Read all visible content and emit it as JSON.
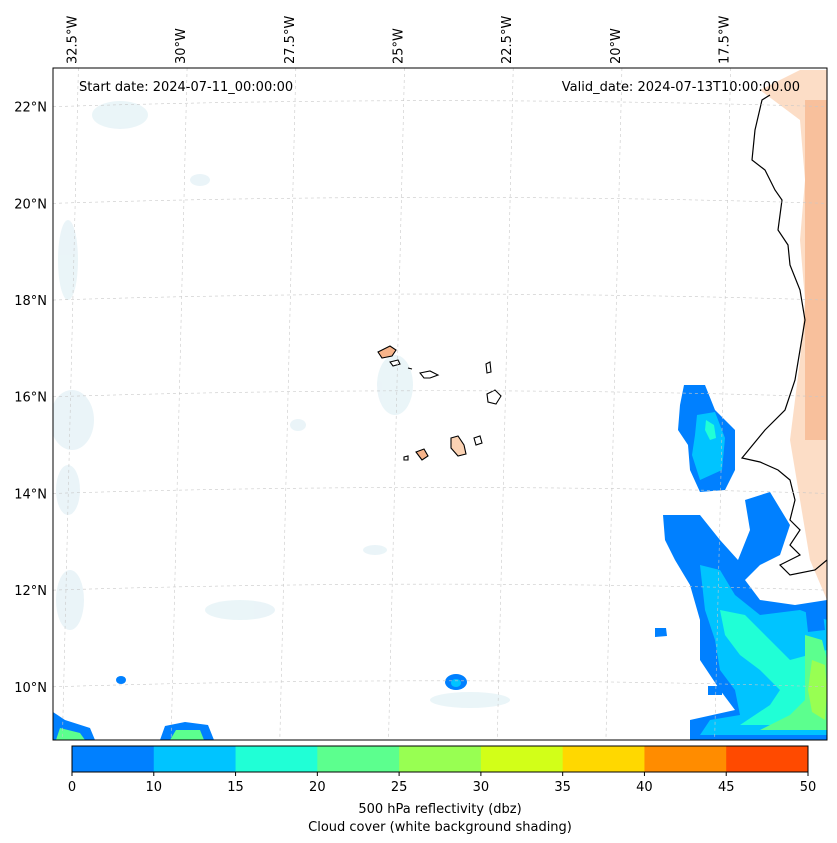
{
  "map": {
    "start_label": "Start date: 2024-07-11_00:00:00",
    "valid_label": "Valid_date: 2024-07-13T10:00:00.00",
    "lon_ticks": [
      "32.5°W",
      "30°W",
      "27.5°W",
      "25°W",
      "22.5°W",
      "20°W",
      "17.5°W"
    ],
    "lat_ticks": [
      "22°N",
      "20°N",
      "18°N",
      "16°N",
      "14°N",
      "12°N",
      "10°N"
    ],
    "lon_values": [
      -32.5,
      -30,
      -27.5,
      -25,
      -22.5,
      -20,
      -17.5
    ],
    "lat_values": [
      22,
      20,
      18,
      16,
      14,
      12,
      10
    ],
    "extent": {
      "lon": [
        -32.9,
        -15.1
      ],
      "lat": [
        8.9,
        22.8
      ]
    }
  },
  "colorbar": {
    "ticks": [
      "0",
      "10",
      "15",
      "20",
      "25",
      "30",
      "35",
      "40",
      "45",
      "50"
    ],
    "levels": [
      0,
      10,
      15,
      20,
      25,
      30,
      35,
      40,
      45,
      50
    ],
    "colors": [
      "#0080ff",
      "#00c4ff",
      "#20ffd6",
      "#5cff8e",
      "#98ff52",
      "#d2ff18",
      "#ffd800",
      "#ff8c00",
      "#ff4a00"
    ],
    "label_line1": "500 hPa reflectivity (dbz)",
    "label_line2": "Cloud cover (white background shading)"
  }
}
